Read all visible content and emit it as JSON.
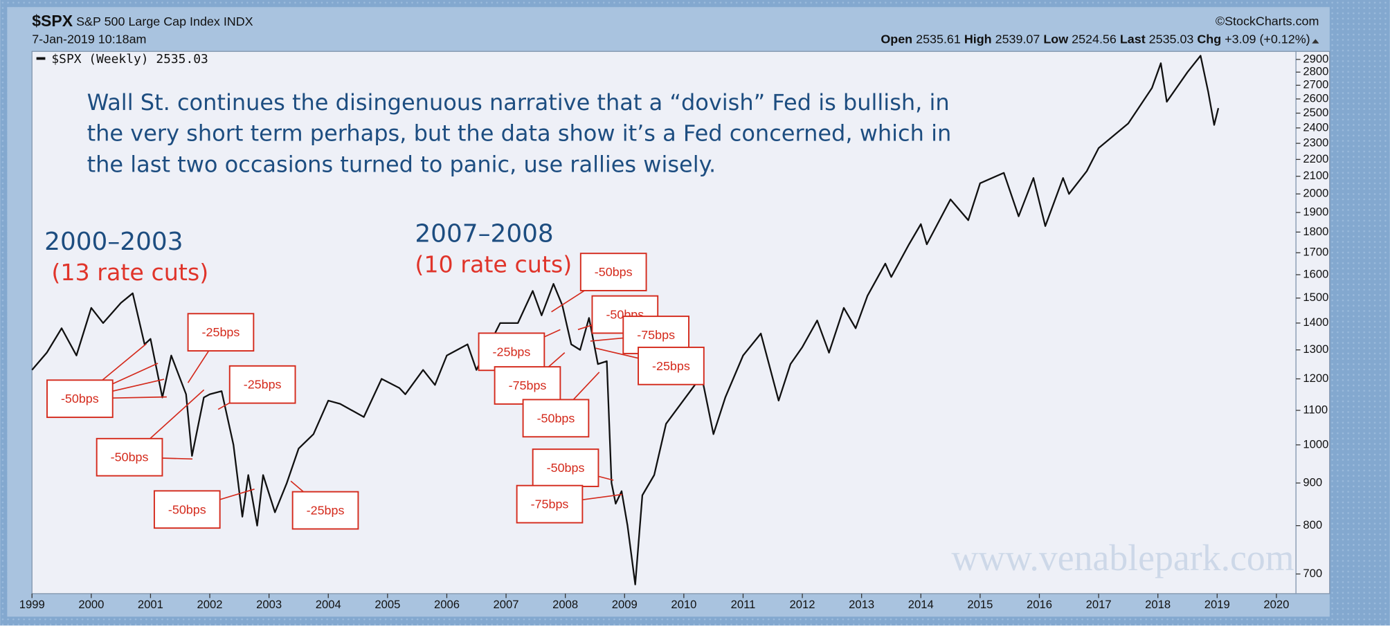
{
  "chart_data": {
    "type": "line",
    "header": {
      "symbol": "$SPX",
      "name": "S&P 500 Large Cap Index",
      "exchange": "INDX",
      "source": "©StockCharts.com",
      "date": "7-Jan-2019 10:18am",
      "open_label": "Open",
      "open": 2535.61,
      "high_label": "High",
      "high": 2539.07,
      "low_label": "Low",
      "low": 2524.56,
      "last_label": "Last",
      "last": 2535.03,
      "chg_label": "Chg",
      "chg": "+3.09 (+0.12%)"
    },
    "legend_label": "$SPX (Weekly)",
    "legend_value": 2535.03,
    "annotations": {
      "commentary": [
        "Wall St. continues the disingenuous narrative that a “dovish” Fed is bullish, in",
        "the very short term perhaps, but the data show it’s a Fed concerned, which in",
        "the last two occasions turned to panic, use rallies wisely."
      ],
      "period1": "2000–2003",
      "period1_cuts": "(13 rate cuts)",
      "period2": "2007–2008",
      "period2_cuts": "(10 rate cuts)",
      "callouts": [
        "-50bps",
        "-25bps",
        "-25bps",
        "-50bps",
        "-50bps",
        "-25bps",
        "-50bps",
        "-50bps",
        "-25bps",
        "-75bps",
        "-75bps",
        "-25bps",
        "-50bps",
        "-50bps",
        "-75bps"
      ],
      "watermark": "www.venablepark.com"
    },
    "x": [
      1999.0,
      1999.25,
      1999.5,
      1999.75,
      2000.0,
      2000.2,
      2000.5,
      2000.7,
      2000.9,
      2001.0,
      2001.2,
      2001.35,
      2001.6,
      2001.7,
      2001.9,
      2002.0,
      2002.2,
      2002.4,
      2002.55,
      2002.65,
      2002.8,
      2002.9,
      2003.1,
      2003.3,
      2003.5,
      2003.75,
      2004.0,
      2004.2,
      2004.6,
      2004.9,
      2005.2,
      2005.3,
      2005.6,
      2005.8,
      2006.0,
      2006.35,
      2006.5,
      2006.9,
      2007.2,
      2007.45,
      2007.6,
      2007.8,
      2007.95,
      2008.1,
      2008.25,
      2008.4,
      2008.55,
      2008.7,
      2008.78,
      2008.85,
      2008.95,
      2009.05,
      2009.18,
      2009.3,
      2009.5,
      2009.7,
      2009.95,
      2010.3,
      2010.5,
      2010.7,
      2011.0,
      2011.3,
      2011.6,
      2011.8,
      2012.0,
      2012.25,
      2012.45,
      2012.7,
      2012.9,
      2013.1,
      2013.4,
      2013.5,
      2013.8,
      2014.0,
      2014.1,
      2014.5,
      2014.8,
      2015.0,
      2015.4,
      2015.65,
      2015.9,
      2016.1,
      2016.4,
      2016.5,
      2016.8,
      2017.0,
      2017.5,
      2017.9,
      2018.05,
      2018.15,
      2018.5,
      2018.72,
      2018.85,
      2018.95,
      2019.02
    ],
    "series": [
      {
        "name": "$SPX",
        "color": "#111111",
        "values": [
          1230,
          1290,
          1380,
          1280,
          1460,
          1400,
          1480,
          1520,
          1320,
          1340,
          1140,
          1280,
          1150,
          970,
          1140,
          1150,
          1160,
          1000,
          820,
          920,
          800,
          920,
          830,
          900,
          990,
          1030,
          1130,
          1120,
          1080,
          1200,
          1170,
          1150,
          1230,
          1180,
          1280,
          1320,
          1230,
          1400,
          1400,
          1530,
          1430,
          1560,
          1470,
          1320,
          1300,
          1420,
          1250,
          1260,
          900,
          850,
          880,
          800,
          680,
          870,
          920,
          1060,
          1120,
          1210,
          1030,
          1140,
          1280,
          1360,
          1130,
          1250,
          1310,
          1410,
          1290,
          1460,
          1380,
          1510,
          1650,
          1590,
          1740,
          1840,
          1740,
          1970,
          1860,
          2060,
          2120,
          1880,
          2090,
          1830,
          2090,
          2000,
          2130,
          2270,
          2430,
          2680,
          2870,
          2580,
          2800,
          2930,
          2650,
          2420,
          2535
        ]
      }
    ],
    "xlim": [
      1999,
      2020.33
    ],
    "xticks": [
      1999,
      2000,
      2001,
      2002,
      2003,
      2004,
      2005,
      2006,
      2007,
      2008,
      2009,
      2010,
      2011,
      2012,
      2013,
      2014,
      2015,
      2016,
      2017,
      2018,
      2019,
      2020
    ],
    "ylim": [
      663,
      2965
    ],
    "yticks": [
      700,
      800,
      900,
      1000,
      1100,
      1200,
      1300,
      1400,
      1500,
      1600,
      1700,
      1800,
      1900,
      2000,
      2100,
      2200,
      2300,
      2400,
      2500,
      2600,
      2700,
      2800,
      2900
    ],
    "log_scale": true
  }
}
